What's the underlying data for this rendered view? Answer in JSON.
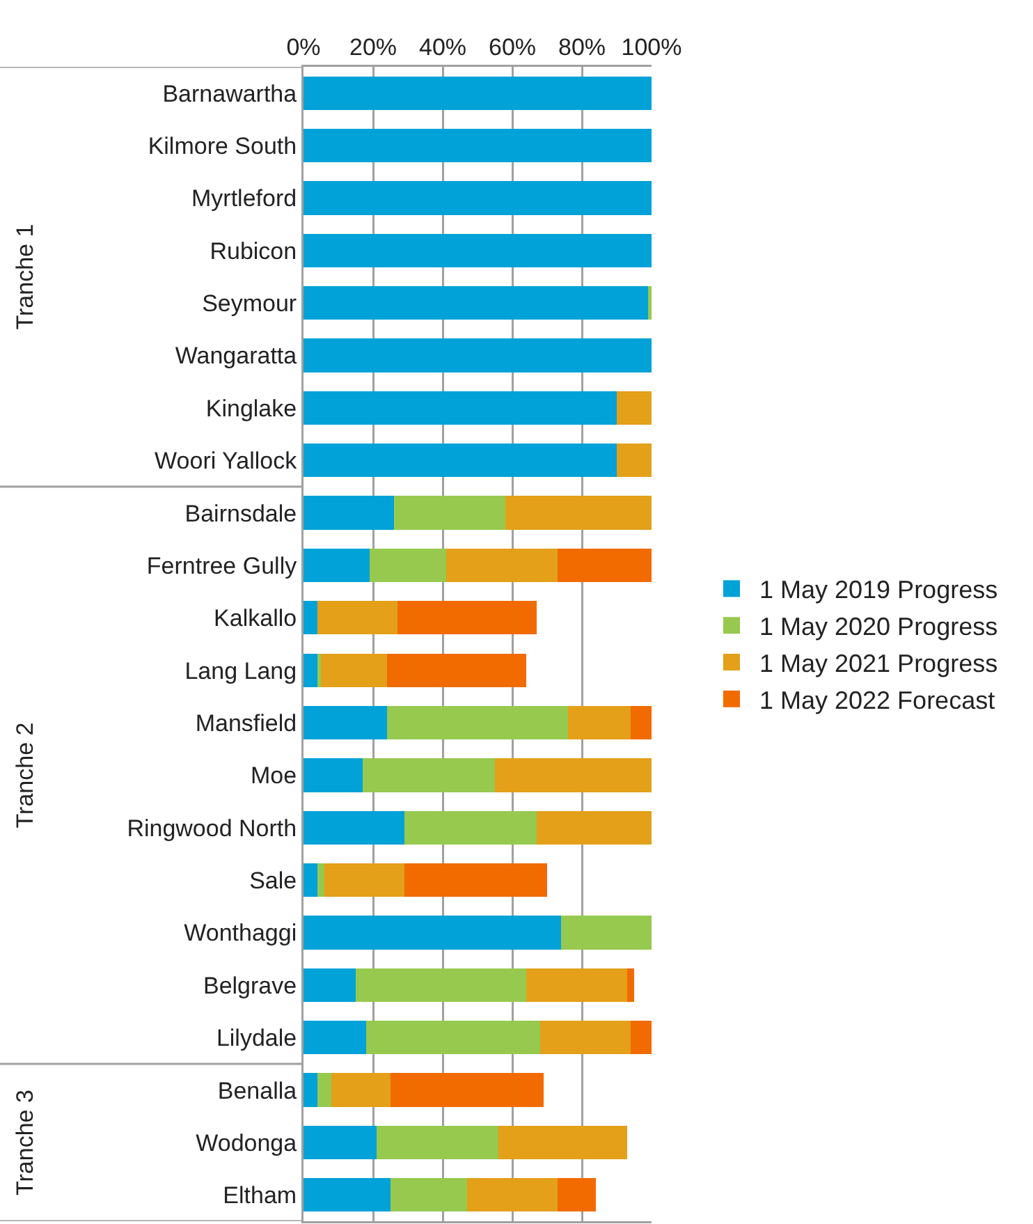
{
  "chart_data": {
    "type": "bar",
    "orientation": "horizontal",
    "stacked": true,
    "categories": [
      "Barnawartha",
      "Kilmore South",
      "Myrtleford",
      "Rubicon",
      "Seymour",
      "Wangaratta",
      "Kinglake",
      "Woori Yallock",
      "Bairnsdale",
      "Ferntree Gully",
      "Kalkallo",
      "Lang Lang",
      "Mansfield",
      "Moe",
      "Ringwood North",
      "Sale",
      "Wonthaggi",
      "Belgrave",
      "Lilydale",
      "Benalla",
      "Wodonga",
      "Eltham"
    ],
    "series": [
      {
        "name": "1 May 2019 Progress",
        "color": "#00a2d8",
        "values": [
          100,
          100,
          100,
          100,
          99,
          100,
          90,
          90,
          26,
          19,
          4,
          4,
          24,
          17,
          29,
          4,
          74,
          15,
          18,
          4,
          21,
          25
        ]
      },
      {
        "name": "1 May 2020 Progress",
        "color": "#97c94f",
        "values": [
          0,
          0,
          0,
          0,
          1,
          0,
          0,
          0,
          32,
          22,
          0,
          1,
          52,
          38,
          38,
          2,
          26,
          49,
          50,
          4,
          35,
          22
        ]
      },
      {
        "name": "1 May 2021 Progress",
        "color": "#e3a018",
        "values": [
          0,
          0,
          0,
          0,
          0,
          0,
          10,
          10,
          42,
          32,
          23,
          19,
          18,
          45,
          33,
          23,
          0,
          29,
          26,
          17,
          37,
          26
        ]
      },
      {
        "name": "1 May 2022 Forecast",
        "color": "#f16b00",
        "values": [
          0,
          0,
          0,
          0,
          0,
          0,
          0,
          0,
          0,
          27,
          40,
          40,
          6,
          0,
          0,
          41,
          0,
          2,
          6,
          44,
          0,
          11
        ]
      }
    ],
    "xlim": [
      0,
      100
    ],
    "xticks": [
      {
        "value": 0,
        "label": "0%"
      },
      {
        "value": 20,
        "label": "20%"
      },
      {
        "value": 40,
        "label": "40%"
      },
      {
        "value": 60,
        "label": "60%"
      },
      {
        "value": 80,
        "label": "80%"
      },
      {
        "value": 100,
        "label": "100%"
      }
    ],
    "grid": "x",
    "legend": "right",
    "annotations": [
      "Tranche 1",
      "Tranche 2",
      "Tranche 3"
    ]
  }
}
